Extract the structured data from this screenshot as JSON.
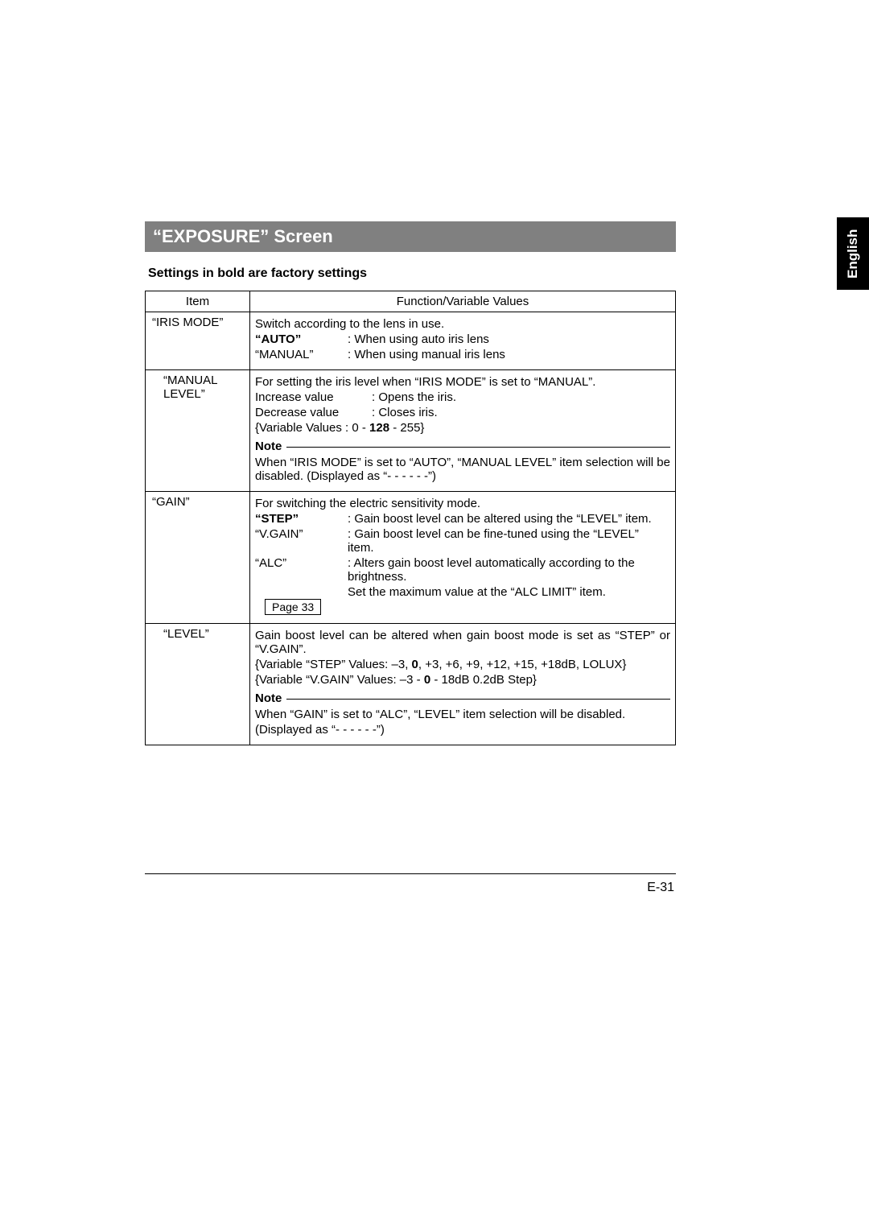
{
  "sideTab": "English",
  "title": "“EXPOSURE” Screen",
  "subtitle": "Settings in bold are factory settings",
  "headers": {
    "item": "Item",
    "func": "Function/Variable Values"
  },
  "rows": {
    "irisMode": {
      "item": "“IRIS MODE”",
      "intro": "Switch according to the lens in use.",
      "autoLabel": "“AUTO”",
      "autoDesc": ": When using auto iris lens",
      "manualLabel": "“MANUAL”",
      "manualDesc": ": When using manual iris lens"
    },
    "manualLevel": {
      "item1": "“MANUAL",
      "item2": "LEVEL”",
      "l1": "For setting the iris level when “IRIS MODE” is set to “MANUAL”.",
      "incLabel": "Increase value",
      "incDesc": ": Opens the iris.",
      "decLabel": "Decrease value",
      "decDesc": ": Closes iris.",
      "varPre": "{Variable Values : 0 - ",
      "varBold": "128",
      "varPost": " - 255}",
      "note": "Note",
      "noteBody": "When “IRIS MODE” is set to “AUTO”, “MANUAL LEVEL” item selection will be disabled. (Displayed as “- - - - - -”)"
    },
    "gain": {
      "item": "“GAIN”",
      "intro": "For switching the electric sensitivity mode.",
      "stepLabel": "“STEP”",
      "stepDesc": ": Gain boost level can be altered using the “LEVEL” item.",
      "vgainLabel": "“V.GAIN”",
      "vgainDesc": ": Gain boost level can be fine-tuned using the “LEVEL” item.",
      "alcLabel": "“ALC”",
      "alcDesc1": ": Alters gain boost level automatically according to the brightness.",
      "alcDesc2": "Set the maximum value at the “ALC LIMIT” item.",
      "pageRef": "Page 33"
    },
    "level": {
      "item": "“LEVEL”",
      "l1": "Gain boost level can be altered when gain boost mode is set as “STEP” or “V.GAIN”.",
      "stepVarPre": "{Variable “STEP” Values: –3, ",
      "stepVarBold": "0",
      "stepVarPost": ", +3, +6, +9, +12, +15, +18dB, LOLUX}",
      "vgainVarPre": "{Variable “V.GAIN” Values: –3 - ",
      "vgainVarBold": "0",
      "vgainVarPost": " - 18dB 0.2dB Step}",
      "note": "Note",
      "noteBody1": "When “GAIN” is set to “ALC”, “LEVEL” item selection will be disabled.",
      "noteBody2": "(Displayed as “- - - - - -”)"
    }
  },
  "pageNumber": "E-31",
  "colors": {
    "titleBg": "#808080",
    "titleFg": "#ffffff",
    "sideBg": "#000000",
    "sideFg": "#ffffff",
    "border": "#000000",
    "pageBg": "#ffffff"
  },
  "fonts": {
    "title_pt": 22,
    "subtitle_pt": 16,
    "body_pt": 15,
    "page_pt": 16
  }
}
